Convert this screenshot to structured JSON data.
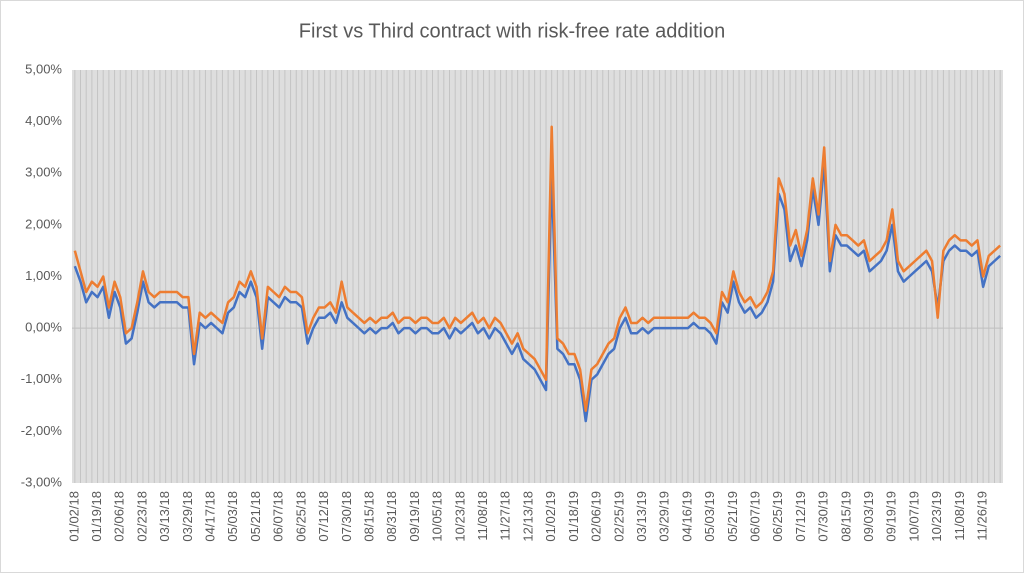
{
  "chart_data": {
    "type": "line",
    "title": "First vs Third contract with risk-free rate addition",
    "categories": [
      "01/02/18",
      null,
      null,
      null,
      "01/19/18",
      null,
      null,
      null,
      "02/06/18",
      null,
      null,
      null,
      "02/23/18",
      null,
      null,
      null,
      "03/13/18",
      null,
      null,
      null,
      "03/29/18",
      null,
      null,
      null,
      "04/17/18",
      null,
      null,
      null,
      "05/03/18",
      null,
      null,
      null,
      "05/21/18",
      null,
      null,
      null,
      "06/07/18",
      null,
      null,
      null,
      "06/25/18",
      null,
      null,
      null,
      "07/12/18",
      null,
      null,
      null,
      "07/30/18",
      null,
      null,
      null,
      "08/15/18",
      null,
      null,
      null,
      "08/31/18",
      null,
      null,
      null,
      "09/19/18",
      null,
      null,
      null,
      "10/05/18",
      null,
      null,
      null,
      "10/23/18",
      null,
      null,
      null,
      "11/08/18",
      null,
      null,
      null,
      "11/27/18",
      null,
      null,
      null,
      "12/13/18",
      null,
      null,
      null,
      "01/02/19",
      null,
      null,
      null,
      "01/18/19",
      null,
      null,
      null,
      "02/06/19",
      null,
      null,
      null,
      "02/25/19",
      null,
      null,
      null,
      "03/13/19",
      null,
      null,
      null,
      "03/29/19",
      null,
      null,
      null,
      "04/16/19",
      null,
      null,
      null,
      "05/03/19",
      null,
      null,
      null,
      "05/21/19",
      null,
      null,
      null,
      "06/07/19",
      null,
      null,
      null,
      "06/25/19",
      null,
      null,
      null,
      "07/12/19",
      null,
      null,
      null,
      "07/30/19",
      null,
      null,
      null,
      "08/15/19",
      null,
      null,
      null,
      "09/03/19",
      null,
      null,
      null,
      "09/19/19",
      null,
      null,
      null,
      "10/07/19",
      null,
      null,
      null,
      "10/23/19",
      null,
      null,
      null,
      "11/08/19",
      null,
      null,
      null,
      "11/26/19",
      null,
      null,
      null
    ],
    "series": [
      {
        "color": "#4472c4",
        "values": [
          1.2,
          0.9,
          0.5,
          0.7,
          0.6,
          0.8,
          0.2,
          0.7,
          0.4,
          -0.3,
          -0.2,
          0.3,
          0.9,
          0.5,
          0.4,
          0.5,
          0.5,
          0.5,
          0.5,
          0.4,
          0.4,
          -0.7,
          0.1,
          0.0,
          0.1,
          0.0,
          -0.1,
          0.3,
          0.4,
          0.7,
          0.6,
          0.9,
          0.6,
          -0.4,
          0.6,
          0.5,
          0.4,
          0.6,
          0.5,
          0.5,
          0.4,
          -0.3,
          0.0,
          0.2,
          0.2,
          0.3,
          0.1,
          0.5,
          0.2,
          0.1,
          0.0,
          -0.1,
          0.0,
          -0.1,
          0.0,
          0.0,
          0.1,
          -0.1,
          0.0,
          0.0,
          -0.1,
          0.0,
          0.0,
          -0.1,
          -0.1,
          0.0,
          -0.2,
          0.0,
          -0.1,
          0.0,
          0.1,
          -0.1,
          0.0,
          -0.2,
          0.0,
          -0.1,
          -0.3,
          -0.5,
          -0.3,
          -0.6,
          -0.7,
          -0.8,
          -1.0,
          -1.2,
          3.0,
          -0.4,
          -0.5,
          -0.7,
          -0.7,
          -1.0,
          -1.8,
          -1.0,
          -0.9,
          -0.7,
          -0.5,
          -0.4,
          0.0,
          0.2,
          -0.1,
          -0.1,
          0.0,
          -0.1,
          0.0,
          0.0,
          0.0,
          0.0,
          0.0,
          0.0,
          0.0,
          0.1,
          0.0,
          0.0,
          -0.1,
          -0.3,
          0.5,
          0.3,
          0.9,
          0.5,
          0.3,
          0.4,
          0.2,
          0.3,
          0.5,
          0.9,
          2.6,
          2.3,
          1.3,
          1.6,
          1.2,
          1.7,
          2.7,
          2.0,
          3.2,
          1.1,
          1.8,
          1.6,
          1.6,
          1.5,
          1.4,
          1.5,
          1.1,
          1.2,
          1.3,
          1.5,
          2.0,
          1.1,
          0.9,
          1.0,
          1.1,
          1.2,
          1.3,
          1.1,
          0.4,
          1.3,
          1.5,
          1.6,
          1.5,
          1.5,
          1.4,
          1.5,
          0.8,
          1.2,
          1.3,
          1.4
        ]
      },
      {
        "color": "#ed7d31",
        "values": [
          1.5,
          1.1,
          0.7,
          0.9,
          0.8,
          1.0,
          0.4,
          0.9,
          0.6,
          -0.1,
          0.0,
          0.5,
          1.1,
          0.7,
          0.6,
          0.7,
          0.7,
          0.7,
          0.7,
          0.6,
          0.6,
          -0.5,
          0.3,
          0.2,
          0.3,
          0.2,
          0.1,
          0.5,
          0.6,
          0.9,
          0.8,
          1.1,
          0.8,
          -0.2,
          0.8,
          0.7,
          0.6,
          0.8,
          0.7,
          0.7,
          0.6,
          -0.1,
          0.2,
          0.4,
          0.4,
          0.5,
          0.3,
          0.9,
          0.4,
          0.3,
          0.2,
          0.1,
          0.2,
          0.1,
          0.2,
          0.2,
          0.3,
          0.1,
          0.2,
          0.2,
          0.1,
          0.2,
          0.2,
          0.1,
          0.1,
          0.2,
          0.0,
          0.2,
          0.1,
          0.2,
          0.3,
          0.1,
          0.2,
          0.0,
          0.2,
          0.1,
          -0.1,
          -0.3,
          -0.1,
          -0.4,
          -0.5,
          -0.6,
          -0.8,
          -1.0,
          3.9,
          -0.2,
          -0.3,
          -0.5,
          -0.5,
          -0.8,
          -1.6,
          -0.8,
          -0.7,
          -0.5,
          -0.3,
          -0.2,
          0.2,
          0.4,
          0.1,
          0.1,
          0.2,
          0.1,
          0.2,
          0.2,
          0.2,
          0.2,
          0.2,
          0.2,
          0.2,
          0.3,
          0.2,
          0.2,
          0.1,
          -0.1,
          0.7,
          0.5,
          1.1,
          0.7,
          0.5,
          0.6,
          0.4,
          0.5,
          0.7,
          1.1,
          2.9,
          2.6,
          1.6,
          1.9,
          1.4,
          1.9,
          2.9,
          2.2,
          3.5,
          1.3,
          2.0,
          1.8,
          1.8,
          1.7,
          1.6,
          1.7,
          1.3,
          1.4,
          1.5,
          1.7,
          2.3,
          1.3,
          1.1,
          1.2,
          1.3,
          1.4,
          1.5,
          1.3,
          0.2,
          1.5,
          1.7,
          1.8,
          1.7,
          1.7,
          1.6,
          1.7,
          1.0,
          1.4,
          1.5,
          1.6
        ]
      }
    ],
    "ylim": [
      -3,
      5
    ],
    "yticks": [
      {
        "value": -3,
        "label": "-3,00%"
      },
      {
        "value": -2,
        "label": "-2,00%"
      },
      {
        "value": -1,
        "label": "-1,00%"
      },
      {
        "value": 0,
        "label": "0,00%"
      },
      {
        "value": 1,
        "label": "1,00%"
      },
      {
        "value": 2,
        "label": "2,00%"
      },
      {
        "value": 3,
        "label": "3,00%"
      },
      {
        "value": 4,
        "label": "4,00%"
      },
      {
        "value": 5,
        "label": "5,00%"
      }
    ],
    "grid": false
  }
}
